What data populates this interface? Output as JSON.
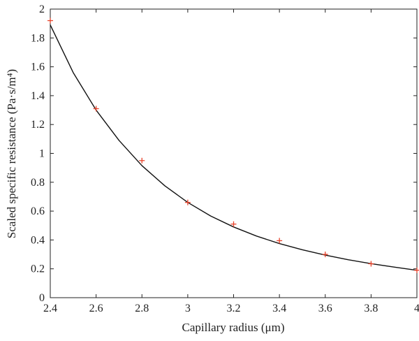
{
  "chart_data": {
    "type": "scatter",
    "title": "",
    "xlabel": "Capillary radius (μm)",
    "ylabel": "Scaled specific resistance (Pa·s/m⁴)",
    "xlim": [
      2.4,
      4.0
    ],
    "ylim": [
      0,
      2.0
    ],
    "xticks": [
      "2.4",
      "2.6",
      "2.8",
      "3",
      "3.2",
      "3.4",
      "3.6",
      "3.8",
      "4"
    ],
    "yticks": [
      "0",
      "0.2",
      "0.4",
      "0.6",
      "0.8",
      "1",
      "1.2",
      "1.4",
      "1.6",
      "1.8",
      "2"
    ],
    "grid": false,
    "legend": "none",
    "series": [
      {
        "kind": "markers",
        "marker": "plus",
        "color": "#e8432b",
        "x": [
          2.4,
          2.6,
          2.8,
          3.0,
          3.2,
          3.4,
          3.6,
          3.8,
          4.0
        ],
        "y": [
          1.92,
          1.31,
          0.95,
          0.66,
          0.51,
          0.395,
          0.3,
          0.235,
          0.19
        ]
      },
      {
        "kind": "line",
        "color": "#111111",
        "x": [
          2.4,
          2.5,
          2.6,
          2.7,
          2.8,
          2.9,
          3.0,
          3.1,
          3.2,
          3.3,
          3.4,
          3.5,
          3.6,
          3.7,
          3.8,
          3.9,
          4.0
        ],
        "y": [
          1.89,
          1.56,
          1.3,
          1.09,
          0.915,
          0.775,
          0.66,
          0.566,
          0.49,
          0.427,
          0.375,
          0.332,
          0.295,
          0.263,
          0.236,
          0.212,
          0.19
        ]
      }
    ]
  }
}
